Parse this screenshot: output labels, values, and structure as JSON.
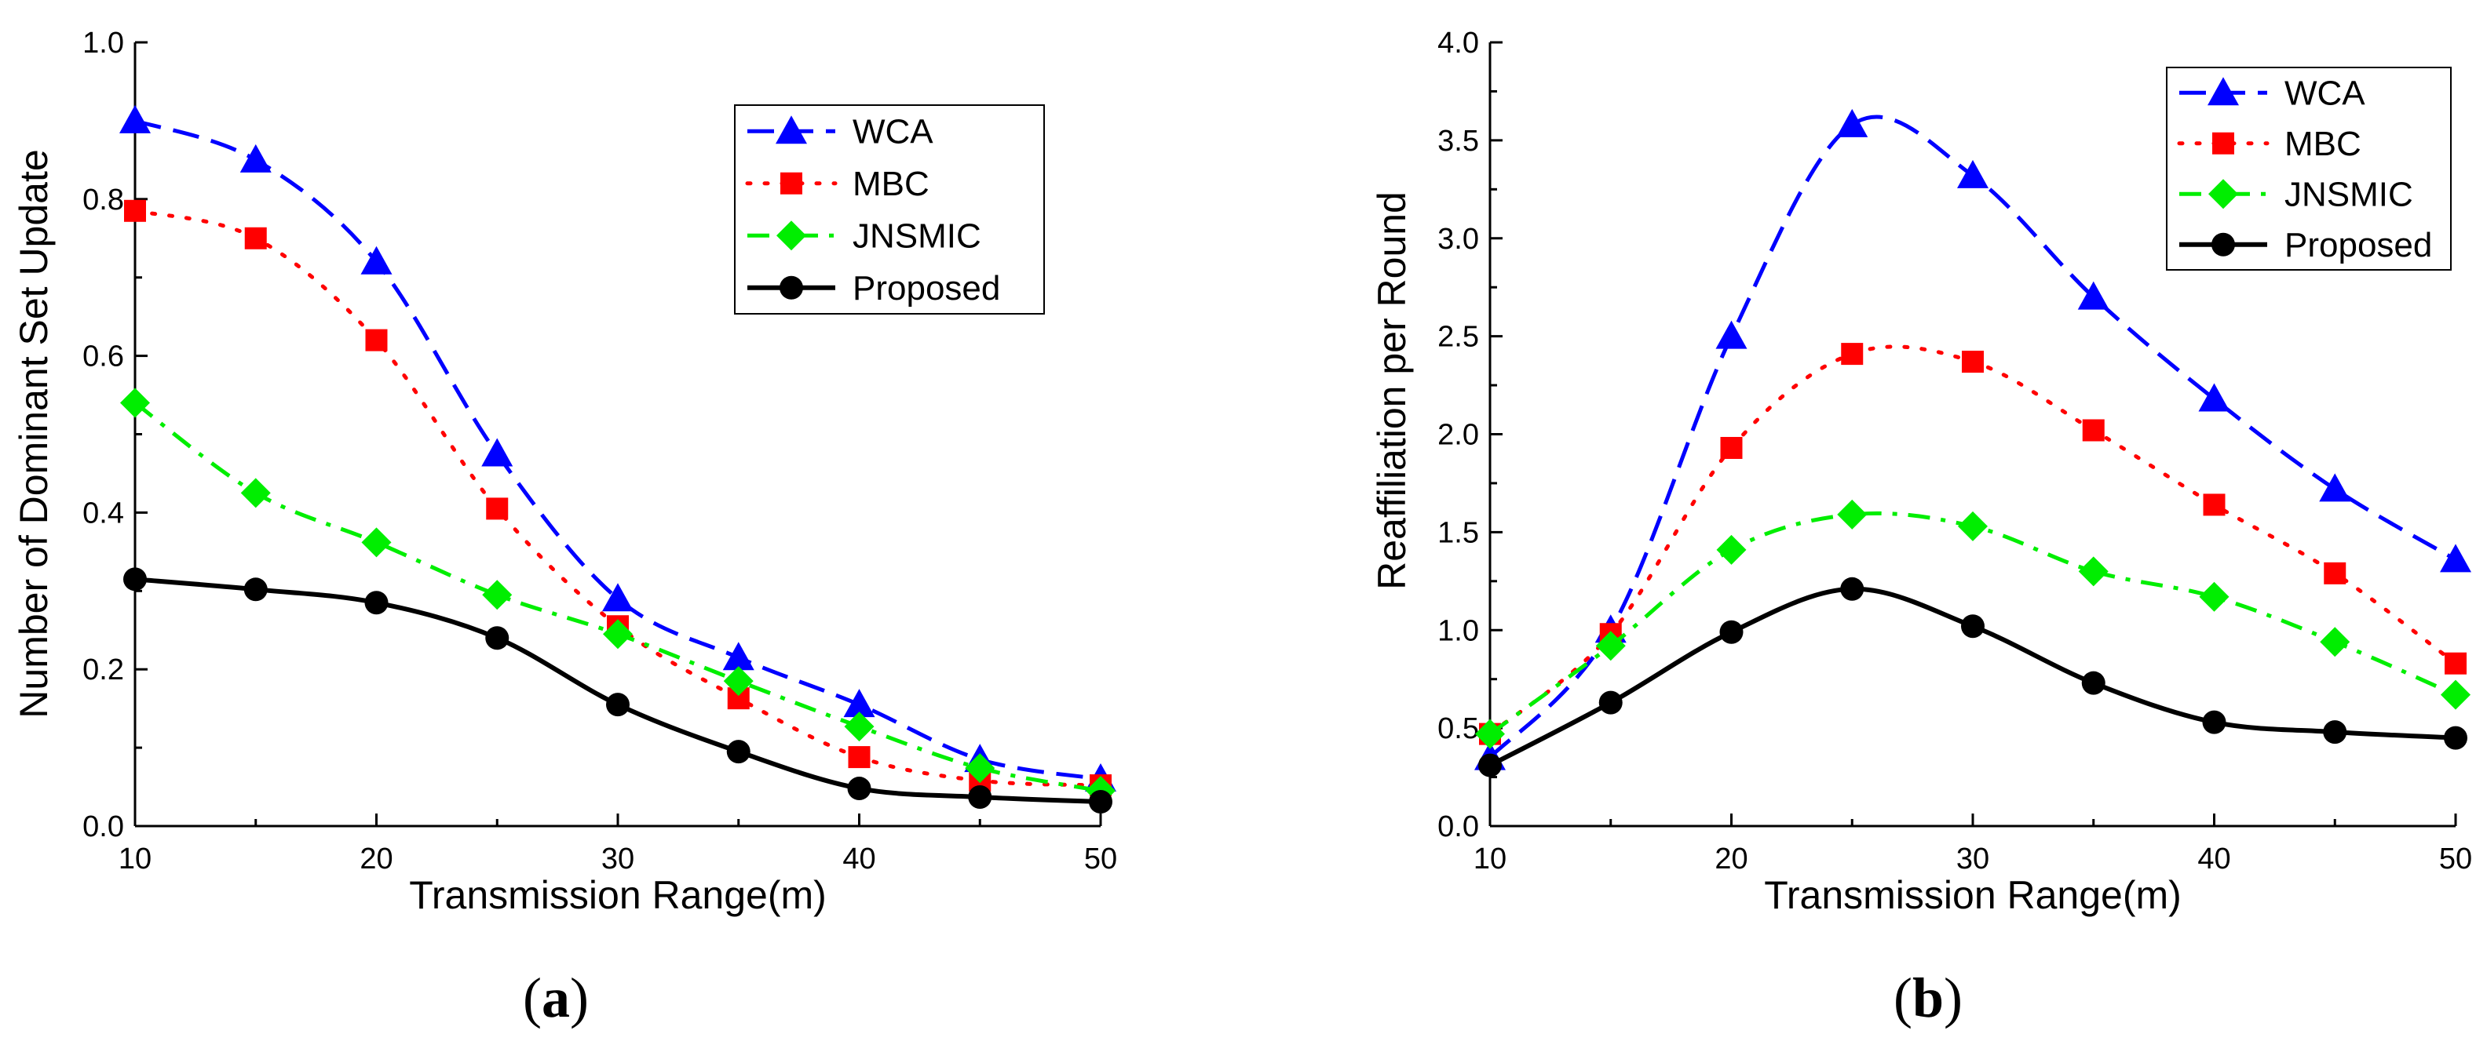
{
  "chart_data": [
    {
      "type": "line",
      "panel_label": "(a)",
      "xlabel": "Transmission Range(m)",
      "ylabel": "Number of Dominant Set Update",
      "x": [
        10,
        15,
        20,
        25,
        30,
        35,
        40,
        45,
        50
      ],
      "xlim": [
        10,
        50
      ],
      "ylim": [
        0,
        1.0
      ],
      "xticks": [
        "10",
        "20",
        "30",
        "40",
        "50"
      ],
      "yticks": [
        "0.0",
        "0.2",
        "0.4",
        "0.6",
        "0.8",
        "1.0"
      ],
      "legend_position": "top-right",
      "series": [
        {
          "name": "WCA",
          "color": "#0000ff",
          "marker": "triangle",
          "line": "dash",
          "values": [
            0.9,
            0.85,
            0.72,
            0.475,
            0.29,
            0.215,
            0.155,
            0.085,
            0.06
          ]
        },
        {
          "name": "MBC",
          "color": "#ff0000",
          "marker": "square",
          "line": "dot",
          "values": [
            0.785,
            0.75,
            0.62,
            0.405,
            0.255,
            0.163,
            0.088,
            0.058,
            0.052
          ]
        },
        {
          "name": "JNSMIC",
          "color": "#00ee00",
          "marker": "diamond",
          "line": "dashdot",
          "values": [
            0.54,
            0.425,
            0.362,
            0.295,
            0.245,
            0.185,
            0.127,
            0.074,
            0.045
          ]
        },
        {
          "name": "Proposed",
          "color": "#000000",
          "marker": "circle",
          "line": "solid",
          "values": [
            0.315,
            0.302,
            0.285,
            0.24,
            0.155,
            0.095,
            0.048,
            0.037,
            0.031
          ]
        }
      ]
    },
    {
      "type": "line",
      "panel_label": "(b)",
      "xlabel": "Transmission Range(m)",
      "ylabel": "Reaffiliation per Round",
      "x": [
        10,
        15,
        20,
        25,
        30,
        35,
        40,
        45,
        50
      ],
      "xlim": [
        10,
        50
      ],
      "ylim": [
        0,
        4.0
      ],
      "xticks": [
        "10",
        "20",
        "30",
        "40",
        "50"
      ],
      "yticks": [
        "0.0",
        "0.5",
        "1.0",
        "1.5",
        "2.0",
        "2.5",
        "3.0",
        "3.5",
        "4.0"
      ],
      "legend_position": "top-right",
      "series": [
        {
          "name": "WCA",
          "color": "#0000ff",
          "marker": "triangle",
          "line": "dash",
          "values": [
            0.35,
            1.0,
            2.5,
            3.58,
            3.32,
            2.7,
            2.18,
            1.72,
            1.36
          ]
        },
        {
          "name": "MBC",
          "color": "#ff0000",
          "marker": "square",
          "line": "dot",
          "values": [
            0.47,
            0.98,
            1.93,
            2.41,
            2.37,
            2.02,
            1.64,
            1.29,
            0.83
          ]
        },
        {
          "name": "JNSMIC",
          "color": "#00ee00",
          "marker": "diamond",
          "line": "dashdot",
          "values": [
            0.47,
            0.92,
            1.41,
            1.59,
            1.53,
            1.3,
            1.17,
            0.94,
            0.67
          ]
        },
        {
          "name": "Proposed",
          "color": "#000000",
          "marker": "circle",
          "line": "solid",
          "values": [
            0.31,
            0.63,
            0.99,
            1.21,
            1.02,
            0.73,
            0.53,
            0.48,
            0.45
          ]
        }
      ]
    }
  ]
}
